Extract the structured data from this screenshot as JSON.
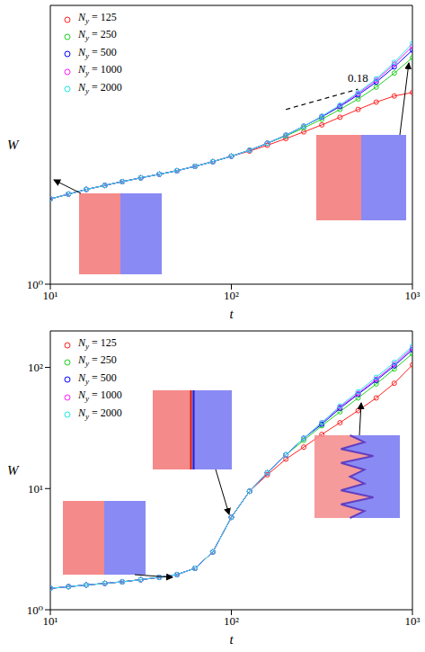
{
  "chart_data": [
    {
      "type": "line",
      "x_label": "t",
      "y_label": "W",
      "log": true,
      "legend": "upper left",
      "marker": "circle",
      "line_style": "solid",
      "xlim": [
        10,
        1000
      ],
      "ylim": [
        1,
        9.5
      ],
      "xticks": [
        {
          "value": 10,
          "label": "10¹"
        },
        {
          "value": 100,
          "label": "10²"
        },
        {
          "value": 1000,
          "label": "10³"
        }
      ],
      "yticks": [
        {
          "value": 1,
          "label": "10⁰"
        }
      ],
      "x": [
        10,
        12.6,
        15.8,
        20,
        25,
        31.6,
        40,
        50,
        63,
        79,
        100,
        126,
        158,
        200,
        251,
        316,
        398,
        501,
        631,
        794,
        1000
      ],
      "series": [
        {
          "name": "Ny = 125",
          "color": "#ff2020",
          "values": [
            1.99,
            2.07,
            2.15,
            2.22,
            2.29,
            2.36,
            2.43,
            2.5,
            2.59,
            2.69,
            2.81,
            2.93,
            3.07,
            3.24,
            3.42,
            3.62,
            3.85,
            4.1,
            4.35,
            4.57,
            4.7
          ]
        },
        {
          "name": "Ny = 250",
          "color": "#20d020",
          "values": [
            1.99,
            2.07,
            2.15,
            2.22,
            2.29,
            2.36,
            2.43,
            2.5,
            2.59,
            2.69,
            2.81,
            2.95,
            3.12,
            3.31,
            3.53,
            3.79,
            4.1,
            4.46,
            4.91,
            5.5,
            6.23
          ]
        },
        {
          "name": "Ny = 500",
          "color": "#0000ff",
          "values": [
            1.99,
            2.07,
            2.15,
            2.22,
            2.29,
            2.36,
            2.43,
            2.5,
            2.59,
            2.69,
            2.81,
            2.95,
            3.12,
            3.33,
            3.58,
            3.86,
            4.2,
            4.61,
            5.11,
            5.78,
            6.62
          ]
        },
        {
          "name": "Ny = 1000",
          "color": "#ff20ff",
          "values": [
            1.99,
            2.07,
            2.15,
            2.22,
            2.29,
            2.36,
            2.43,
            2.5,
            2.59,
            2.69,
            2.81,
            2.95,
            3.12,
            3.33,
            3.58,
            3.88,
            4.23,
            4.66,
            5.19,
            5.91,
            6.83
          ]
        },
        {
          "name": "Ny = 2000",
          "color": "#20e8e8",
          "values": [
            1.99,
            2.07,
            2.15,
            2.22,
            2.29,
            2.36,
            2.43,
            2.5,
            2.59,
            2.69,
            2.81,
            2.95,
            3.12,
            3.33,
            3.58,
            3.88,
            4.25,
            4.7,
            5.25,
            6.0,
            6.99
          ]
        }
      ],
      "annotations": [
        {
          "text": "0.18",
          "x": [
            200,
            500
          ],
          "y": [
            4.1,
            4.83
          ]
        }
      ]
    },
    {
      "type": "line",
      "x_label": "t",
      "y_label": "W",
      "log": true,
      "legend": "upper left",
      "marker": "circle",
      "line_style": "solid",
      "xlim": [
        10,
        1000
      ],
      "ylim": [
        1,
        200
      ],
      "xticks": [
        {
          "value": 10,
          "label": "10¹"
        },
        {
          "value": 100,
          "label": "10²"
        },
        {
          "value": 1000,
          "label": "10³"
        }
      ],
      "yticks": [
        {
          "value": 1,
          "label": "10⁰"
        },
        {
          "value": 10,
          "label": "10¹"
        },
        {
          "value": 100,
          "label": "10²"
        }
      ],
      "x": [
        10,
        12.6,
        15.8,
        20,
        25,
        31.6,
        40,
        50,
        63,
        79,
        100,
        126,
        158,
        200,
        251,
        316,
        398,
        501,
        631,
        794,
        1000
      ],
      "series": [
        {
          "name": "Ny = 125",
          "color": "#ff2020",
          "values": [
            1.5,
            1.55,
            1.6,
            1.65,
            1.7,
            1.77,
            1.85,
            1.95,
            2.2,
            3.0,
            5.8,
            9.5,
            13,
            17.5,
            22,
            28,
            35,
            44,
            56,
            74,
            105
          ]
        },
        {
          "name": "Ny = 250",
          "color": "#20d020",
          "values": [
            1.5,
            1.55,
            1.6,
            1.65,
            1.7,
            1.77,
            1.85,
            1.95,
            2.2,
            3.0,
            5.8,
            9.5,
            13.5,
            19,
            25,
            33,
            43,
            56,
            73,
            97,
            130
          ]
        },
        {
          "name": "Ny = 500",
          "color": "#0000ff",
          "values": [
            1.5,
            1.55,
            1.6,
            1.65,
            1.7,
            1.77,
            1.85,
            1.95,
            2.2,
            3.0,
            5.8,
            9.5,
            13.5,
            19,
            26,
            34,
            46,
            60,
            78,
            103,
            140
          ]
        },
        {
          "name": "Ny = 1000",
          "color": "#ff20ff",
          "values": [
            1.5,
            1.55,
            1.6,
            1.65,
            1.7,
            1.77,
            1.85,
            1.95,
            2.2,
            3.0,
            5.8,
            9.5,
            13.5,
            19,
            26,
            35,
            47,
            61,
            80,
            106,
            145
          ]
        },
        {
          "name": "Ny = 2000",
          "color": "#20e8e8",
          "values": [
            1.5,
            1.55,
            1.6,
            1.65,
            1.7,
            1.77,
            1.85,
            1.95,
            2.2,
            3.0,
            5.8,
            9.5,
            13.5,
            19,
            26,
            35,
            48,
            63,
            83,
            110,
            150
          ]
        }
      ],
      "annotations": []
    }
  ]
}
